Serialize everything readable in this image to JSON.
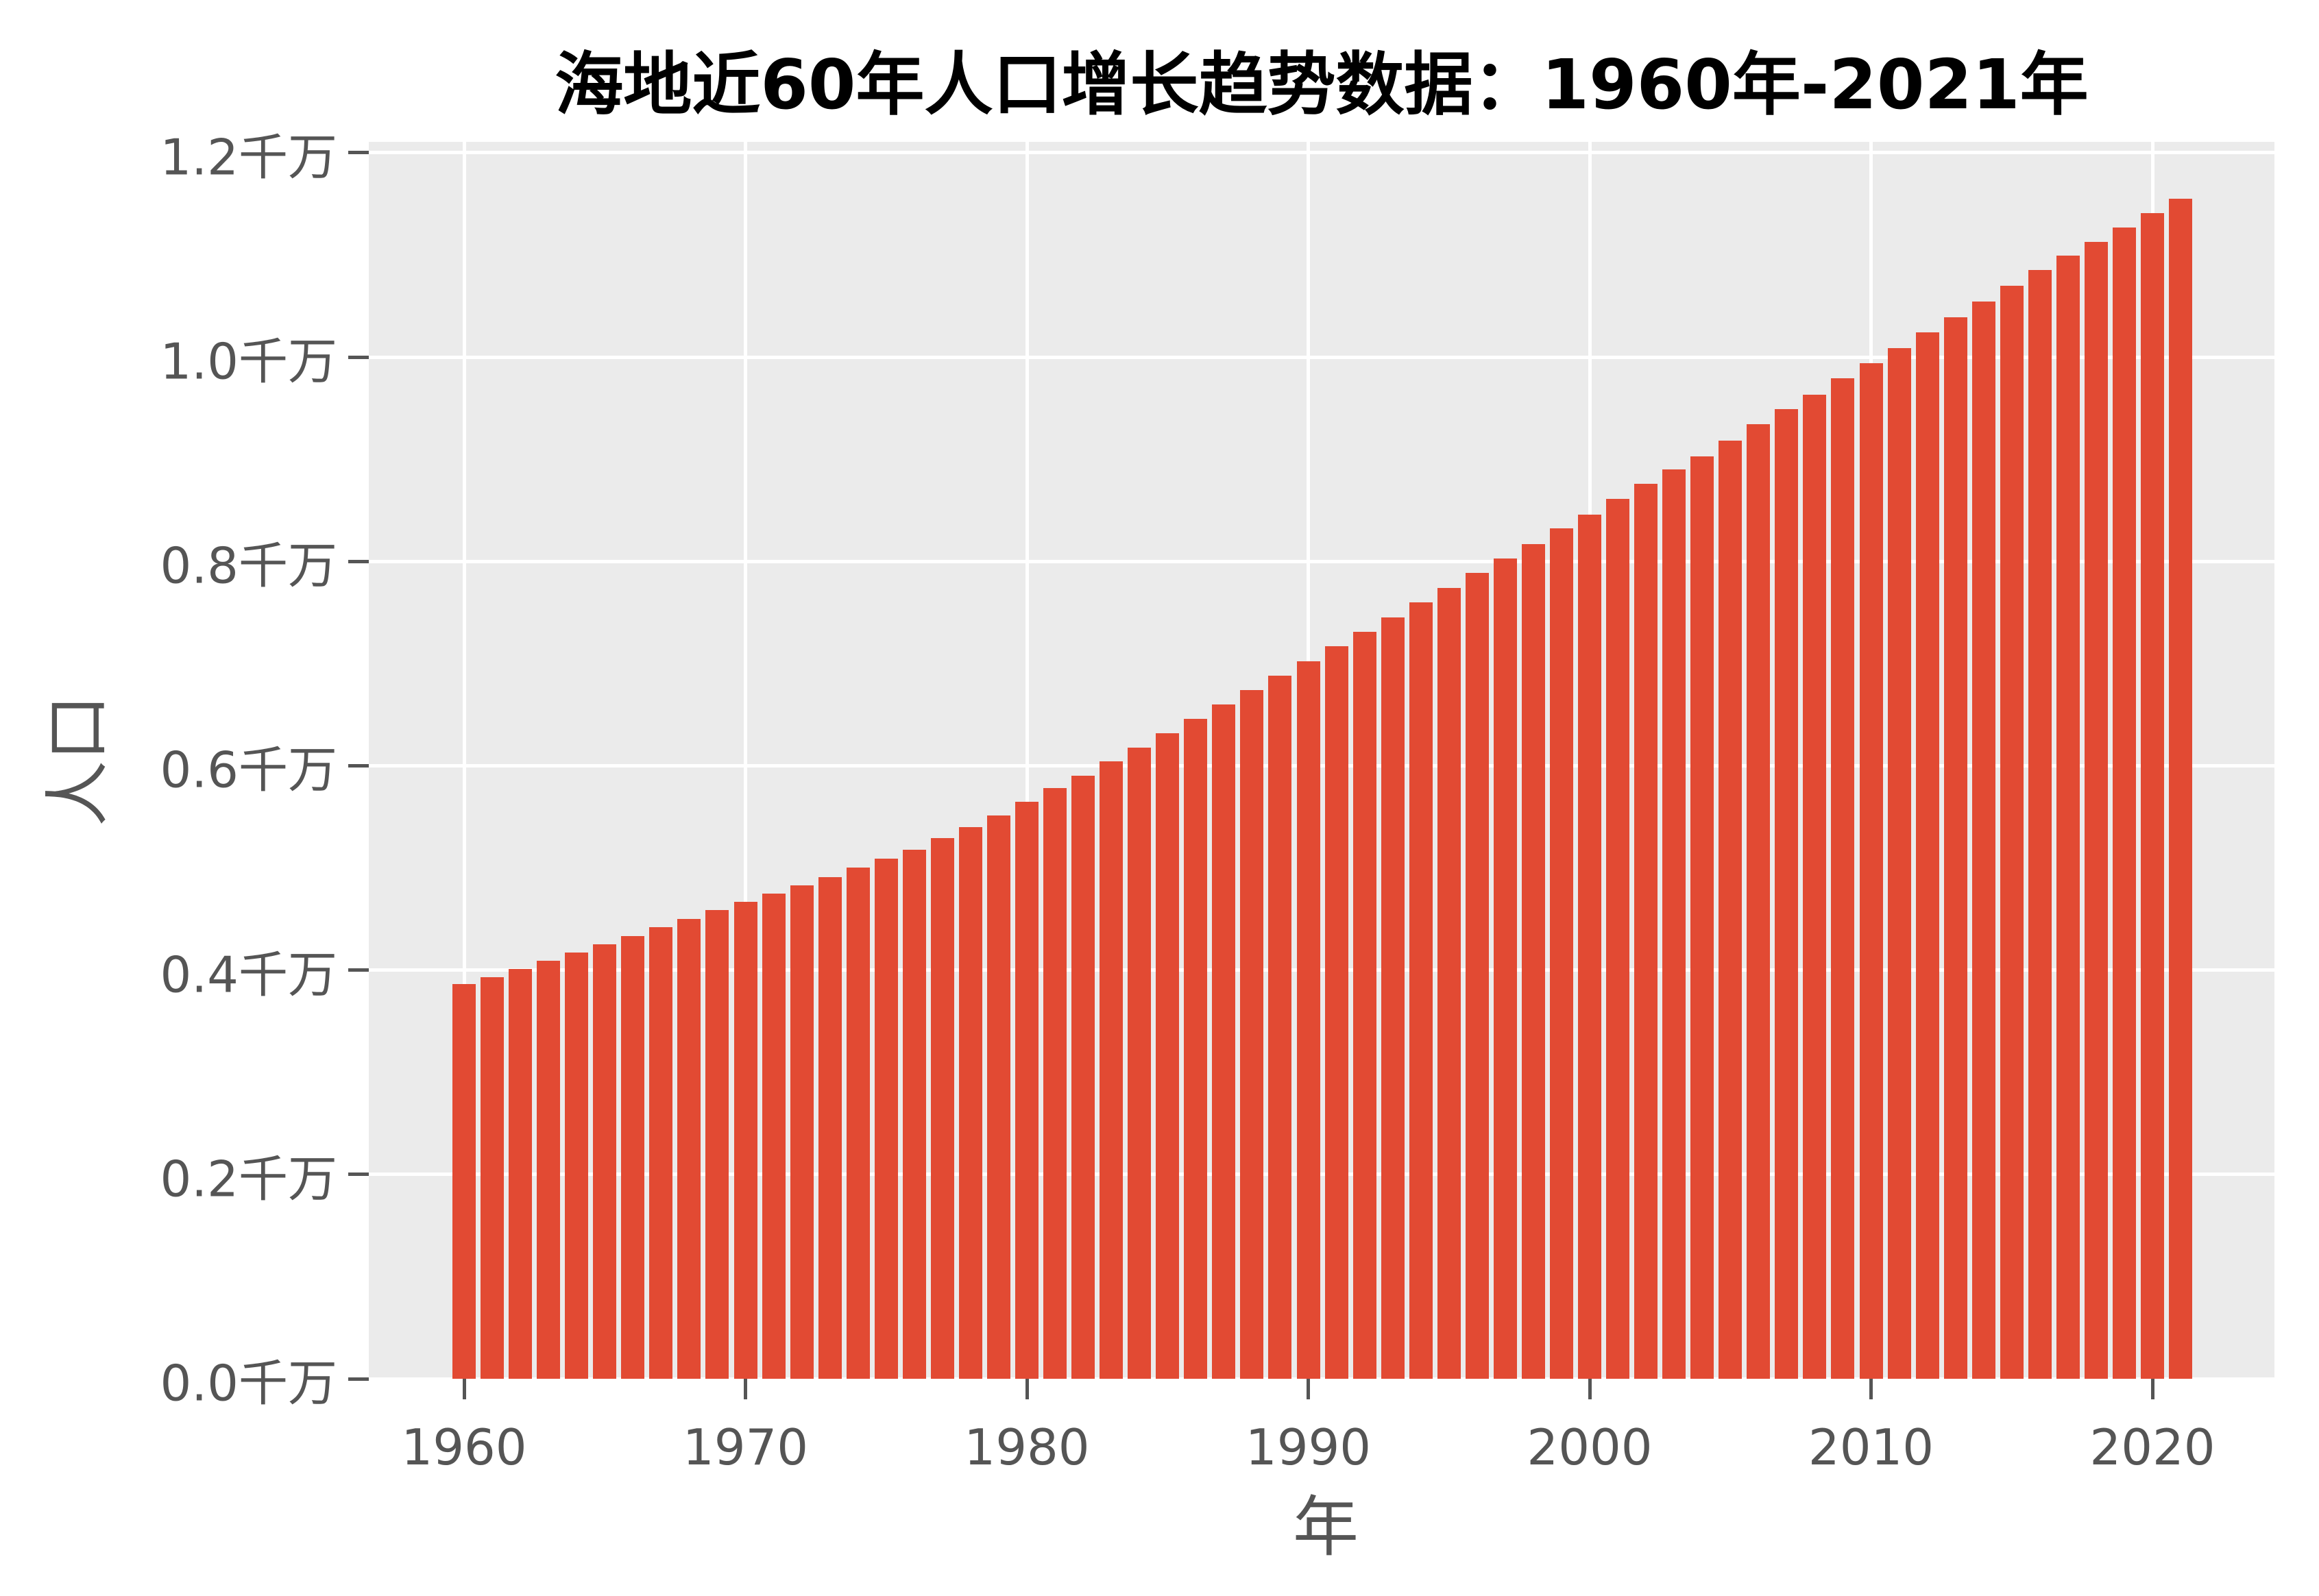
{
  "chart_data": {
    "type": "bar",
    "title": "海地近60年人口增长趋势数据：1960年-2021年",
    "xlabel": "年",
    "ylabel": "人口",
    "unit": "千万",
    "ylim": [
      0,
      1.2
    ],
    "grid": "major gridlines only, white on gray panel",
    "legend_position": "none",
    "colors": {
      "bar": "#E24A33",
      "panel_background": "#EBEBEB",
      "gridline": "#FFFFFF",
      "tick_text": "#555555",
      "title_text": "#000000",
      "tick_mark": "#555555"
    },
    "yticks": [
      {
        "value": 0.0,
        "label": "0.0千万"
      },
      {
        "value": 0.2,
        "label": "0.2千万"
      },
      {
        "value": 0.4,
        "label": "0.4千万"
      },
      {
        "value": 0.6,
        "label": "0.6千万"
      },
      {
        "value": 0.8,
        "label": "0.8千万"
      },
      {
        "value": 1.0,
        "label": "1.0千万"
      },
      {
        "value": 1.2,
        "label": "1.2千万"
      }
    ],
    "xticks": [
      {
        "year": 1960,
        "label": "1960"
      },
      {
        "year": 1970,
        "label": "1970"
      },
      {
        "year": 1980,
        "label": "1980"
      },
      {
        "year": 1990,
        "label": "1990"
      },
      {
        "year": 2000,
        "label": "2000"
      },
      {
        "year": 2010,
        "label": "2010"
      },
      {
        "year": 2020,
        "label": "2020"
      }
    ],
    "categories": [
      1960,
      1961,
      1962,
      1963,
      1964,
      1965,
      1966,
      1967,
      1968,
      1969,
      1970,
      1971,
      1972,
      1973,
      1974,
      1975,
      1976,
      1977,
      1978,
      1979,
      1980,
      1981,
      1982,
      1983,
      1984,
      1985,
      1986,
      1987,
      1988,
      1989,
      1990,
      1991,
      1992,
      1993,
      1994,
      1995,
      1996,
      1997,
      1998,
      1999,
      2000,
      2001,
      2002,
      2003,
      2004,
      2005,
      2006,
      2007,
      2008,
      2009,
      2010,
      2011,
      2012,
      2013,
      2014,
      2015,
      2016,
      2017,
      2018,
      2019,
      2020,
      2021
    ],
    "values": [
      0.386,
      0.393,
      0.401,
      0.409,
      0.417,
      0.425,
      0.433,
      0.442,
      0.45,
      0.459,
      0.467,
      0.475,
      0.483,
      0.491,
      0.5,
      0.509,
      0.518,
      0.529,
      0.54,
      0.551,
      0.565,
      0.578,
      0.59,
      0.604,
      0.618,
      0.632,
      0.646,
      0.66,
      0.674,
      0.688,
      0.702,
      0.717,
      0.731,
      0.745,
      0.76,
      0.774,
      0.789,
      0.803,
      0.817,
      0.832,
      0.846,
      0.861,
      0.876,
      0.89,
      0.903,
      0.918,
      0.934,
      0.949,
      0.963,
      0.979,
      0.994,
      1.009,
      1.024,
      1.039,
      1.054,
      1.07,
      1.085,
      1.099,
      1.113,
      1.127,
      1.141,
      1.155
    ]
  }
}
